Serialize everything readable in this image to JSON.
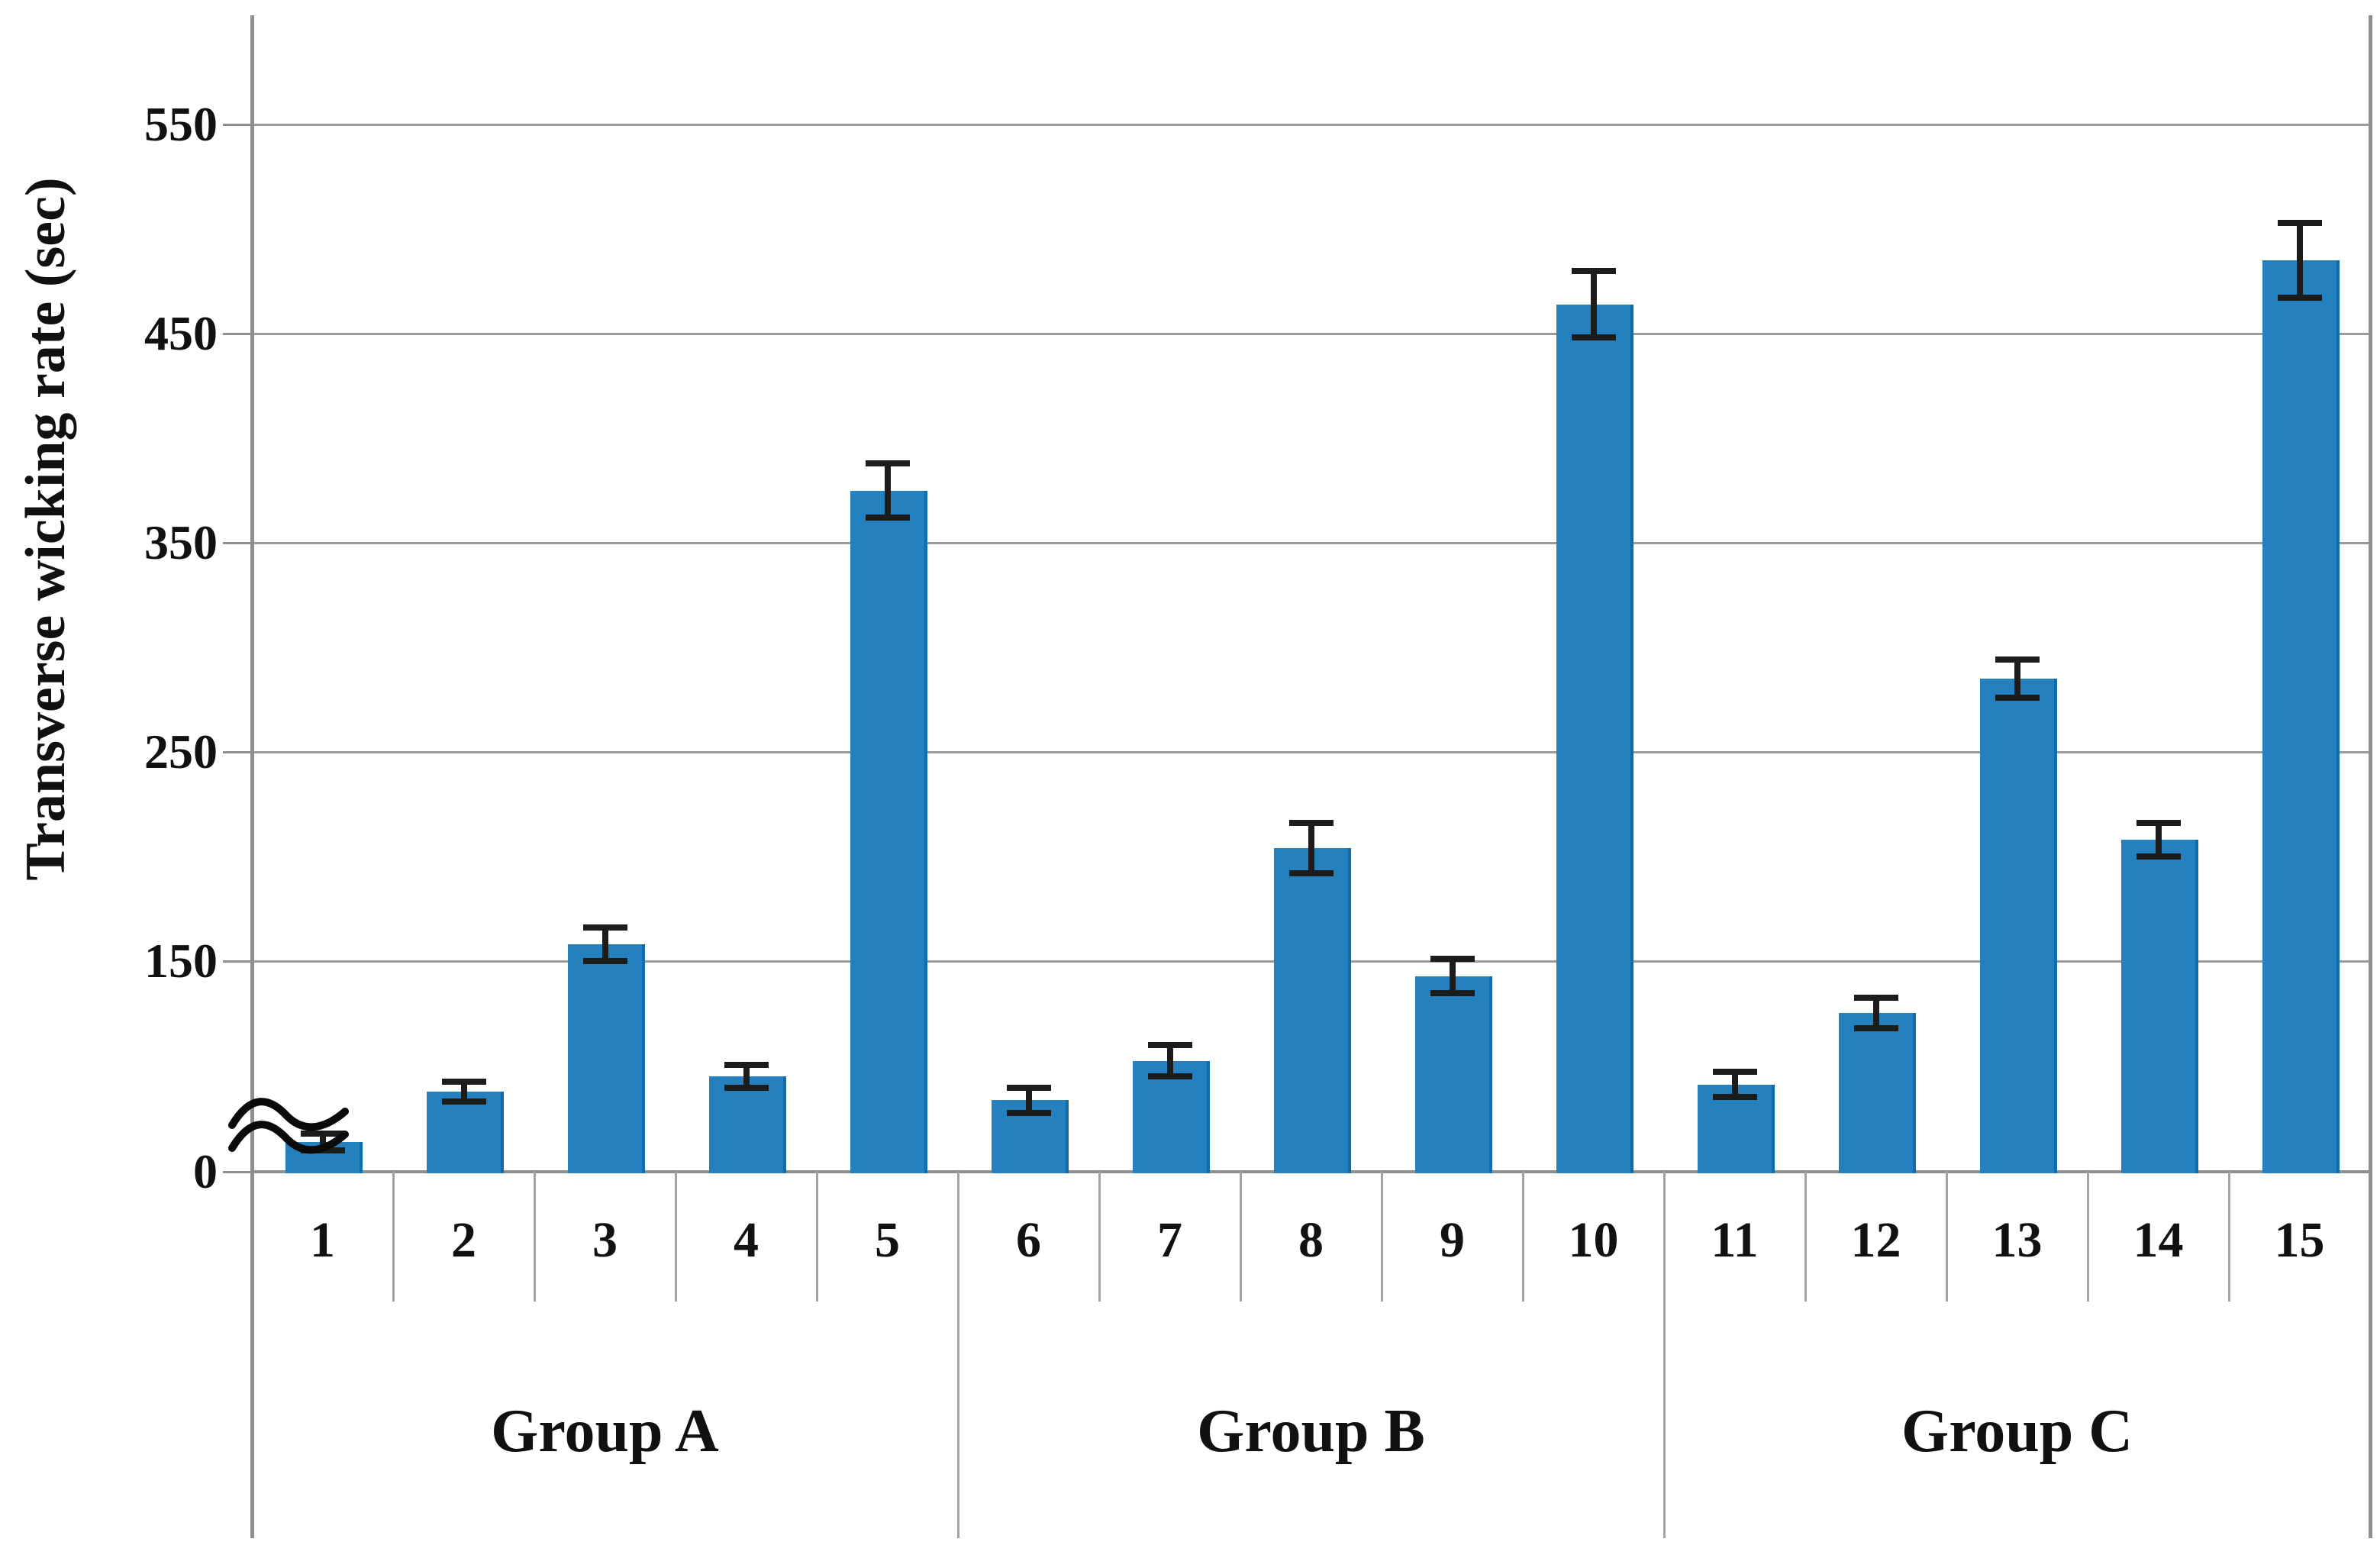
{
  "chart_data": {
    "type": "bar",
    "title": "",
    "xlabel": "",
    "ylabel": "Transverse wicking rate (sec)",
    "yticks": [
      550,
      450,
      350,
      250,
      150,
      0
    ],
    "ylim": [
      0,
      585
    ],
    "axis_break": {
      "symbol": "≈",
      "between": [
        0,
        150
      ],
      "note": "compressed scale between 0 and 150"
    },
    "grid": true,
    "legend": "none",
    "categories": [
      "1",
      "2",
      "3",
      "4",
      "5",
      "6",
      "7",
      "8",
      "9",
      "10",
      "11",
      "12",
      "13",
      "14",
      "15"
    ],
    "groups": [
      {
        "label": "Group A",
        "category_range": [
          "1",
          "5"
        ]
      },
      {
        "label": "Group B",
        "category_range": [
          "6",
          "10"
        ]
      },
      {
        "label": "Group C",
        "category_range": [
          "11",
          "15"
        ]
      }
    ],
    "series": [
      {
        "name": "Transverse wicking rate (sec)",
        "values": [
          21,
          57,
          158,
          68,
          375,
          51,
          79,
          204,
          139,
          464,
          62,
          113,
          285,
          208,
          485
        ],
        "error_bars": [
          6,
          7,
          8,
          8,
          13,
          9,
          11,
          12,
          12,
          16,
          9,
          11,
          9,
          8,
          18
        ]
      }
    ],
    "colors": {
      "bar_fill": "#2581BE",
      "bar_edge": "#0E6DB1",
      "error_bar": "#1c1c1c",
      "gridline": "#9b9b9b",
      "axis": "#8f8f8f",
      "text": "#111111",
      "background": "#ffffff"
    }
  }
}
